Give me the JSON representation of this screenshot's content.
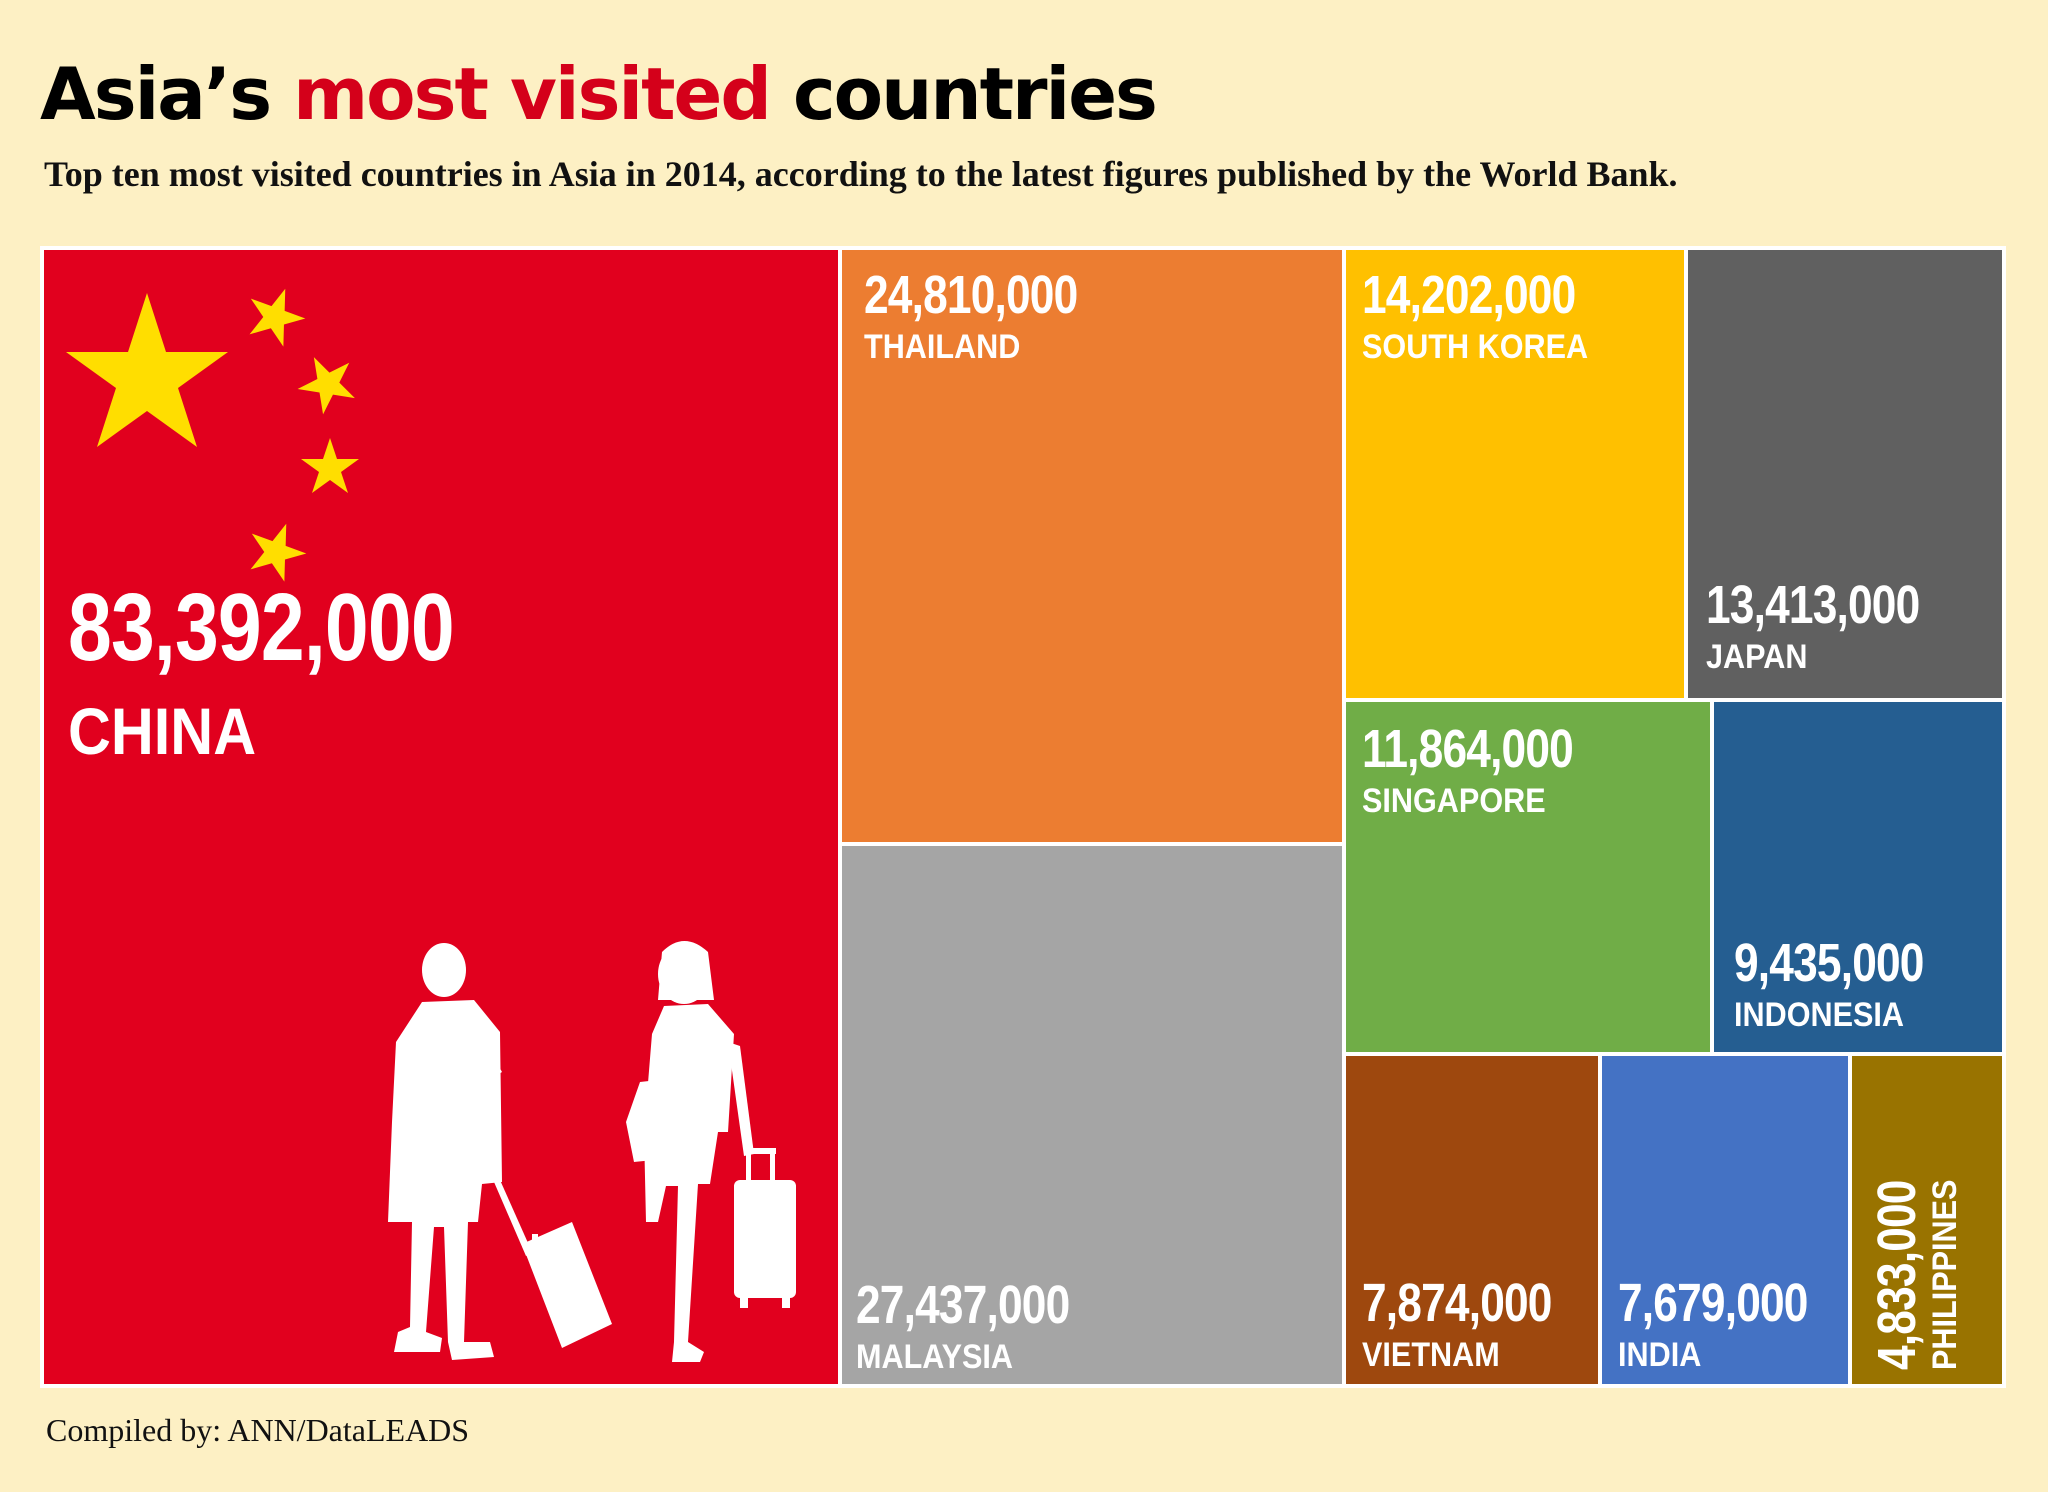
{
  "header": {
    "title_pre": "Asia’s ",
    "title_highlight": "most visited",
    "title_post": " countries",
    "subtitle": "Top ten most visited countries in Asia in 2014, according to the latest figures published by the World Bank."
  },
  "footer": {
    "source": "Compiled by: ANN/DataLEADS"
  },
  "colors": {
    "background": "#fdf0c4",
    "china": "#e1001e",
    "thailand": "#ec7d31",
    "malaysia": "#a5a5a5",
    "south_korea": "#ffc000",
    "japan": "#606060",
    "singapore": "#70ad47",
    "indonesia": "#255e91",
    "vietnam": "#9e480e",
    "india": "#4472c4",
    "philippines": "#997300",
    "star": "#ffde00"
  },
  "chart_data": {
    "type": "treemap",
    "title": "Asia’s most visited countries",
    "subtitle": "Top ten most visited countries in Asia in 2014, according to the latest figures published by the World Bank.",
    "items": [
      {
        "name": "CHINA",
        "value": 83392000,
        "value_label": "83,392,000",
        "color": "#e1001e"
      },
      {
        "name": "THAILAND",
        "value": 24810000,
        "value_label": "24,810,000",
        "color": "#ec7d31"
      },
      {
        "name": "MALAYSIA",
        "value": 27437000,
        "value_label": "27,437,000",
        "color": "#a5a5a5"
      },
      {
        "name": "SOUTH KOREA",
        "value": 14202000,
        "value_label": "14,202,000",
        "color": "#ffc000"
      },
      {
        "name": "JAPAN",
        "value": 13413000,
        "value_label": "13,413,000",
        "color": "#606060"
      },
      {
        "name": "SINGAPORE",
        "value": 11864000,
        "value_label": "11,864,000",
        "color": "#70ad47"
      },
      {
        "name": "INDONESIA",
        "value": 9435000,
        "value_label": "9,435,000",
        "color": "#255e91"
      },
      {
        "name": "VIETNAM",
        "value": 7874000,
        "value_label": "7,874,000",
        "color": "#9e480e"
      },
      {
        "name": "INDIA",
        "value": 7679000,
        "value_label": "7,679,000",
        "color": "#4472c4"
      },
      {
        "name": "PHILIPPINES",
        "value": 4833000,
        "value_label": "4,833,000",
        "color": "#997300"
      }
    ]
  }
}
